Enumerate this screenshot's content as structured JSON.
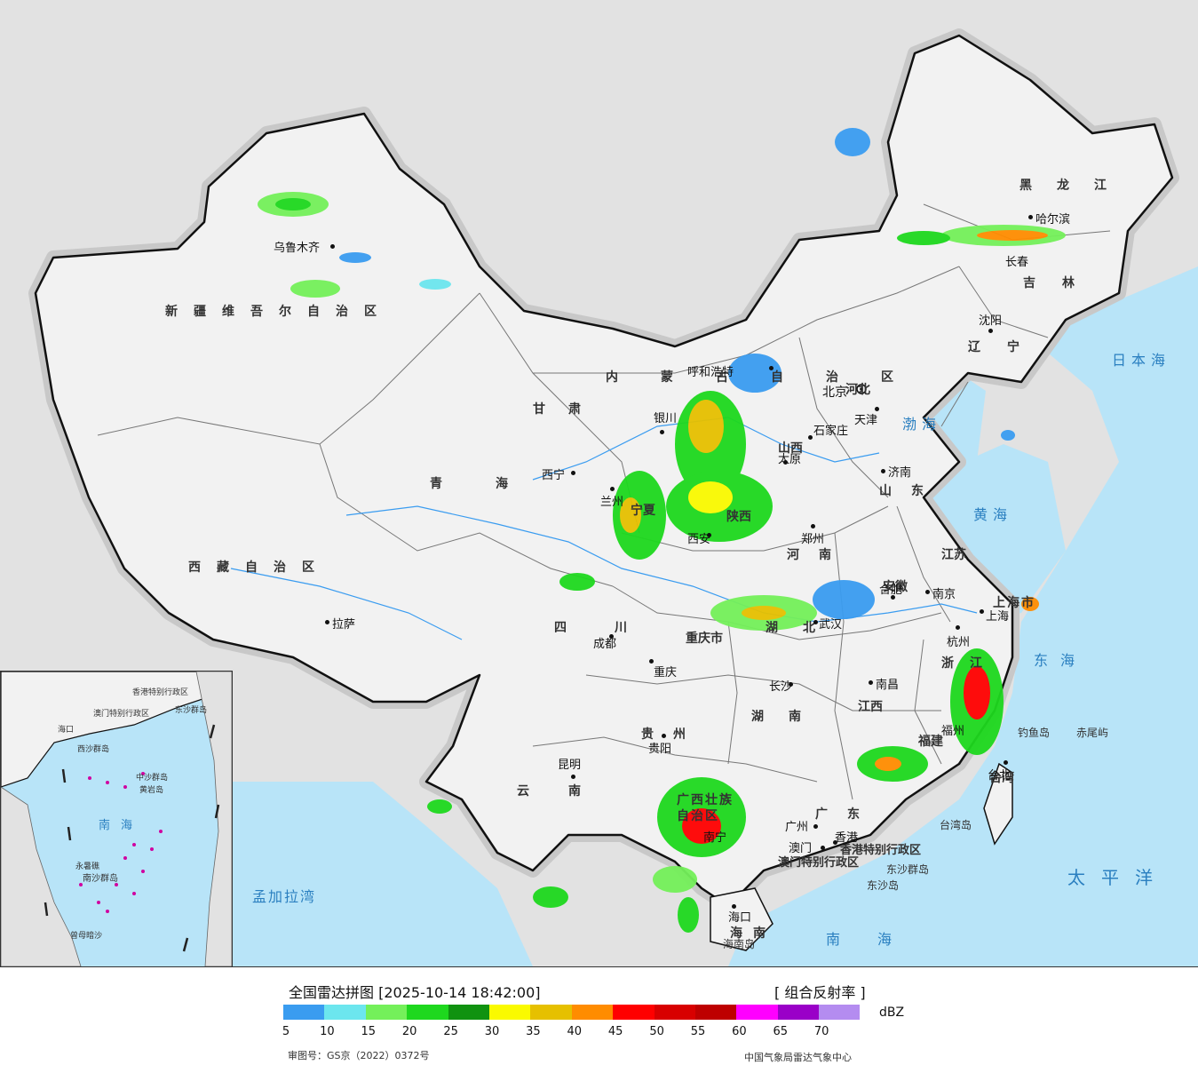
{
  "legend": {
    "title": "全国雷达拼图 [2025-10-14 18:42:00]",
    "product": "[ 组合反射率 ]",
    "unit": "dBZ",
    "ticks": [
      "5",
      "10",
      "15",
      "20",
      "25",
      "30",
      "35",
      "40",
      "45",
      "50",
      "55",
      "60",
      "65",
      "70"
    ],
    "colors": [
      "#3a9cf0",
      "#6ce6ee",
      "#74f05a",
      "#1ed81e",
      "#109210",
      "#fafa00",
      "#e6c000",
      "#ff8c00",
      "#ff0000",
      "#d80000",
      "#be0000",
      "#ff00ff",
      "#9a00c8",
      "#b48cf0"
    ],
    "approval": "审图号：GS京（2022）0372号",
    "agency": "中国气象局雷达气象中心"
  },
  "map": {
    "colors": {
      "land": "#f0f0f0",
      "sea": "#b8e4f8",
      "foreign": "#e2e2e2",
      "border": "#111111",
      "river": "#3a9cf0"
    },
    "provinces": [
      {
        "name": "新疆维吾尔自治区"
      },
      {
        "name": "西藏自治区"
      },
      {
        "name": "青海"
      },
      {
        "name": "甘肃"
      },
      {
        "name": "内蒙古自治区"
      },
      {
        "name": "黑龙江"
      },
      {
        "name": "吉林"
      },
      {
        "name": "辽宁"
      },
      {
        "name": "河北"
      },
      {
        "name": "山西"
      },
      {
        "name": "山东"
      },
      {
        "name": "河南"
      },
      {
        "name": "江苏"
      },
      {
        "name": "安徽"
      },
      {
        "name": "湖北"
      },
      {
        "name": "四川"
      },
      {
        "name": "重庆市"
      },
      {
        "name": "湖南"
      },
      {
        "name": "江西"
      },
      {
        "name": "浙江"
      },
      {
        "name": "福建"
      },
      {
        "name": "贵州"
      },
      {
        "name": "云南"
      },
      {
        "name": "广西壮族自治区"
      },
      {
        "name": "广东"
      },
      {
        "name": "海南"
      },
      {
        "name": "陕西"
      },
      {
        "name": "宁夏"
      },
      {
        "name": "台湾"
      },
      {
        "name": "上海市"
      },
      {
        "name": "香港特别行政区"
      },
      {
        "name": "澳门特别行政区"
      }
    ],
    "cities": [
      "乌鲁木齐",
      "哈尔滨",
      "长春",
      "沈阳",
      "呼和浩特",
      "北京",
      "天津",
      "石家庄",
      "太原",
      "济南",
      "银川",
      "西宁",
      "兰州",
      "西安",
      "郑州",
      "合肥",
      "南京",
      "上海",
      "杭州",
      "武汉",
      "成都",
      "重庆",
      "拉萨",
      "长沙",
      "南昌",
      "福州",
      "台北",
      "贵阳",
      "昆明",
      "南宁",
      "广州",
      "澳门",
      "香港",
      "海口"
    ],
    "seas": [
      "日本海",
      "渤海",
      "黄海",
      "东海",
      "太平洋",
      "南海",
      "孟加拉湾"
    ],
    "islands": [
      "钓鱼岛",
      "赤尾屿",
      "台湾岛",
      "东沙群岛",
      "东沙岛",
      "海南岛"
    ],
    "inset": {
      "sea": "南海",
      "labels": [
        "中沙群岛",
        "黄岩岛",
        "永暑礁",
        "南沙群岛",
        "曾母暗沙",
        "西沙群岛",
        "东沙群岛",
        "海口",
        "香港特别行政区",
        "澳门特别行政区"
      ]
    }
  }
}
